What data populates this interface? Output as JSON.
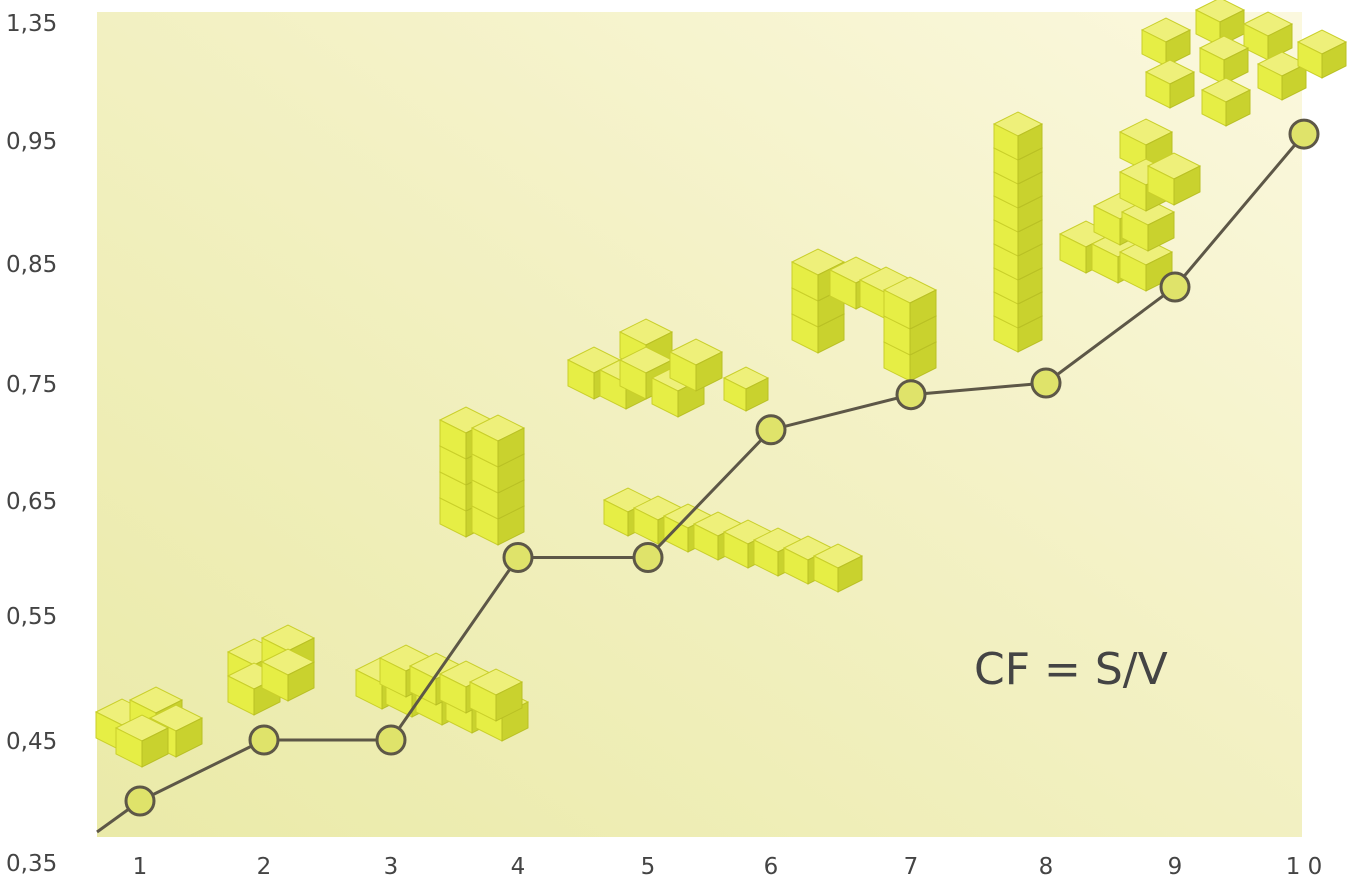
{
  "chart_data": {
    "type": "line",
    "title": "",
    "xlabel": "",
    "ylabel": "",
    "x": [
      1,
      2,
      3,
      4,
      5,
      6,
      7,
      8,
      9,
      10
    ],
    "x_tick_labels": [
      "1",
      "2",
      "3",
      "4",
      "5",
      "6",
      "7",
      "8",
      "9",
      "1 0"
    ],
    "y_tick_values": [
      0.35,
      0.45,
      0.55,
      0.65,
      0.75,
      0.85,
      0.95,
      1.35
    ],
    "y_tick_labels": [
      "0,35",
      "0,45",
      "0,55",
      "0,65",
      "0,75",
      "0,85",
      "0,95",
      "1,35"
    ],
    "series": [
      {
        "values": [
          0.4,
          0.45,
          0.45,
          0.6,
          0.6,
          0.71,
          0.74,
          0.75,
          0.83,
          0.97
        ]
      }
    ],
    "annotation": "CF = S/V",
    "grid": false,
    "legend": "none",
    "colors": {
      "background_light": "#fbf7d8",
      "background_dark": "#eaeaa8",
      "line": "#5d5747",
      "marker_fill": "#dfe36a",
      "marker_stroke": "#5d5747",
      "cube": "#e6ee45"
    },
    "decorations": "yellow cube assemblies illustrating each shape"
  }
}
